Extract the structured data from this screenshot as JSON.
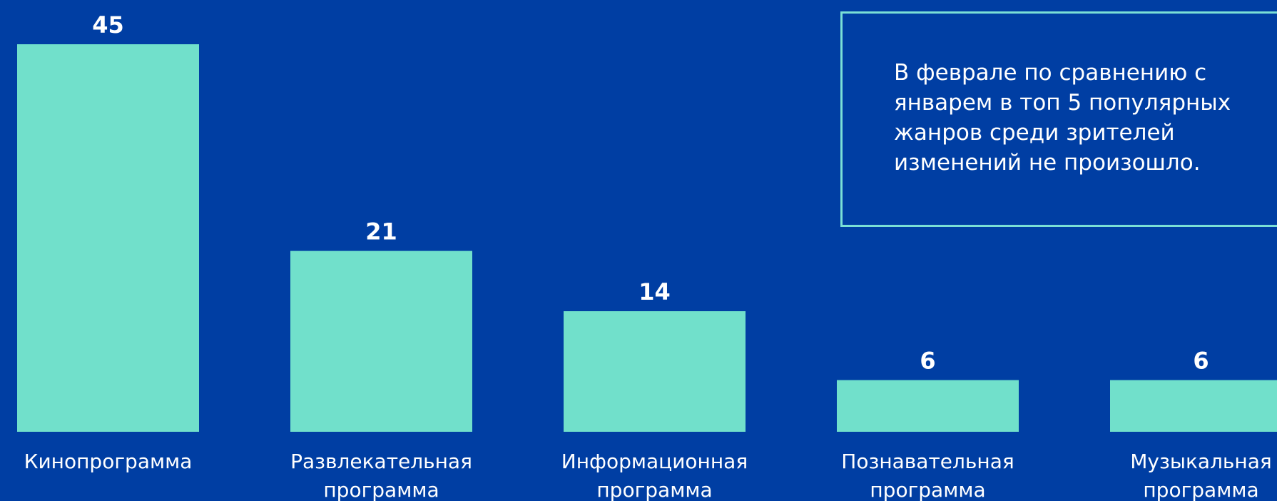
{
  "theme": {
    "background": "#003ea3",
    "bar_color": "#71e0cb",
    "text_color": "#ffffff",
    "note_border": "#7adfd6"
  },
  "note": {
    "text": "В феврале по сравнению с\nянварем в топ 5 популярных\nжанров среди зрителей\nизменений не произошло."
  },
  "chart_data": {
    "type": "bar",
    "title": "",
    "xlabel": "",
    "ylabel": "",
    "categories": [
      [
        "Кинопрограмма"
      ],
      [
        "Развлекательная",
        "программа"
      ],
      [
        "Информационная",
        "программа"
      ],
      [
        "Познавательная",
        "программа"
      ],
      [
        "Музыкальная",
        "программа"
      ]
    ],
    "values": [
      45,
      21,
      14,
      6,
      6
    ],
    "data_labels": [
      "45",
      "21",
      "14",
      "6",
      "6"
    ],
    "ylim": [
      0,
      45
    ],
    "grid": false,
    "legend": "none"
  }
}
